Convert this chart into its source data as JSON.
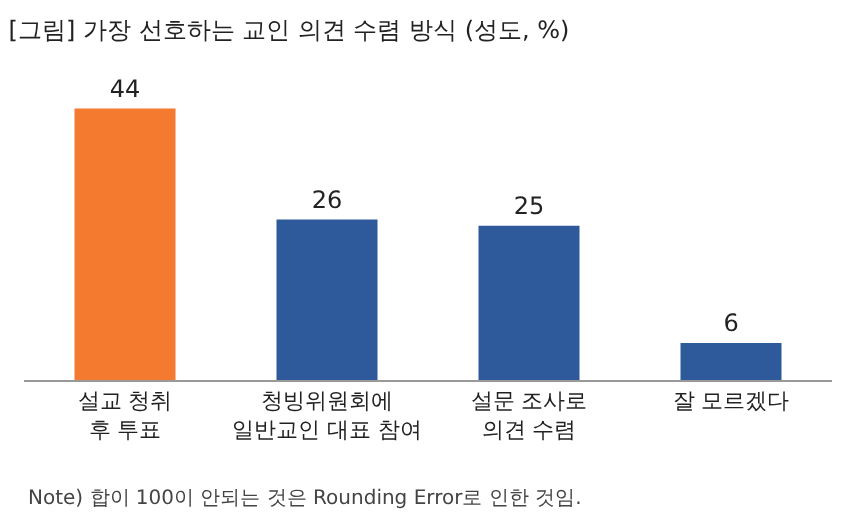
{
  "chart_data": {
    "type": "bar",
    "title": "[그림] 가장 선호하는 교인 의견 수렴 방식 (성도, %)",
    "categories": [
      "설교 청취\n후 투표",
      "청빙위원회에\n일반교인 대표 참여",
      "설문 조사로\n의견 수렴",
      "잘 모르겠다"
    ],
    "values": [
      44,
      26,
      25,
      6
    ],
    "colors": [
      "#f47a30",
      "#2e5a9c",
      "#2e5a9c",
      "#2e5a9c"
    ],
    "data_labels": true,
    "annotations": [
      "Note) 합이 100이 안되는 것은 Rounding Error로 인한 것임."
    ]
  }
}
